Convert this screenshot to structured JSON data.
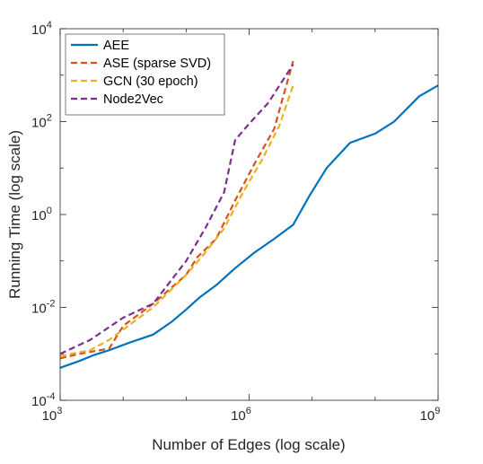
{
  "chart_data": {
    "type": "line",
    "title": "",
    "xlabel": "Number of Edges (log scale)",
    "ylabel": "Running Time (log scale)",
    "xscale": "log",
    "yscale": "log",
    "xlim": [
      1000,
      1000000000
    ],
    "ylim": [
      0.0001,
      10000
    ],
    "grid": false,
    "legend_position": "top-left",
    "xticks": [
      {
        "base": "10",
        "exp": "3",
        "value": 1000
      },
      {
        "base": "10",
        "exp": "6",
        "value": 1000000
      },
      {
        "base": "10",
        "exp": "9",
        "value": 1000000000
      }
    ],
    "yticks": [
      {
        "base": "10",
        "exp": "-4",
        "value": 0.0001
      },
      {
        "base": "10",
        "exp": "-2",
        "value": 0.01
      },
      {
        "base": "10",
        "exp": "0",
        "value": 1
      },
      {
        "base": "10",
        "exp": "2",
        "value": 100
      },
      {
        "base": "10",
        "exp": "4",
        "value": 10000
      }
    ],
    "series": [
      {
        "name": "AEE",
        "color": "#0072BD",
        "dash": "solid",
        "x": [
          1000,
          2000,
          3500,
          6000,
          12000,
          30000,
          60000,
          100000,
          160000,
          300000,
          600000,
          1200000,
          2500000,
          5000000,
          9000000,
          17000000,
          40000000,
          100000000,
          200000000,
          500000000,
          1000000000
        ],
        "y": [
          0.0005,
          0.0007,
          0.00095,
          0.0012,
          0.0017,
          0.0026,
          0.005,
          0.009,
          0.016,
          0.03,
          0.07,
          0.15,
          0.3,
          0.6,
          2.5,
          10,
          35,
          55,
          100,
          350,
          600
        ]
      },
      {
        "name": "ASE (sparse SVD)",
        "color": "#D95319",
        "dash": "dashed",
        "x": [
          1000,
          2000,
          6000,
          10000,
          30000,
          100000,
          150000,
          300000,
          600000,
          1200000,
          2500000,
          5000000
        ],
        "y": [
          0.0008,
          0.001,
          0.0013,
          0.004,
          0.012,
          0.05,
          0.12,
          0.3,
          2,
          12,
          70,
          2000
        ]
      },
      {
        "name": "GCN (30 epoch)",
        "color": "#EDB120",
        "dash": "dashed",
        "x": [
          1000,
          3000,
          6000,
          12000,
          30000,
          100000,
          200000,
          400000,
          800000,
          1600000,
          3000000,
          5000000
        ],
        "y": [
          0.0009,
          0.0012,
          0.002,
          0.004,
          0.01,
          0.05,
          0.15,
          0.5,
          3,
          15,
          80,
          600
        ]
      },
      {
        "name": "Node2Vec",
        "color": "#7E2F8E",
        "dash": "dashed",
        "x": [
          1000,
          3000,
          10000,
          30000,
          100000,
          200000,
          400000,
          600000,
          1000000,
          2000000,
          5000000
        ],
        "y": [
          0.001,
          0.002,
          0.006,
          0.012,
          0.1,
          0.5,
          3,
          40,
          90,
          250,
          1700
        ]
      }
    ]
  }
}
